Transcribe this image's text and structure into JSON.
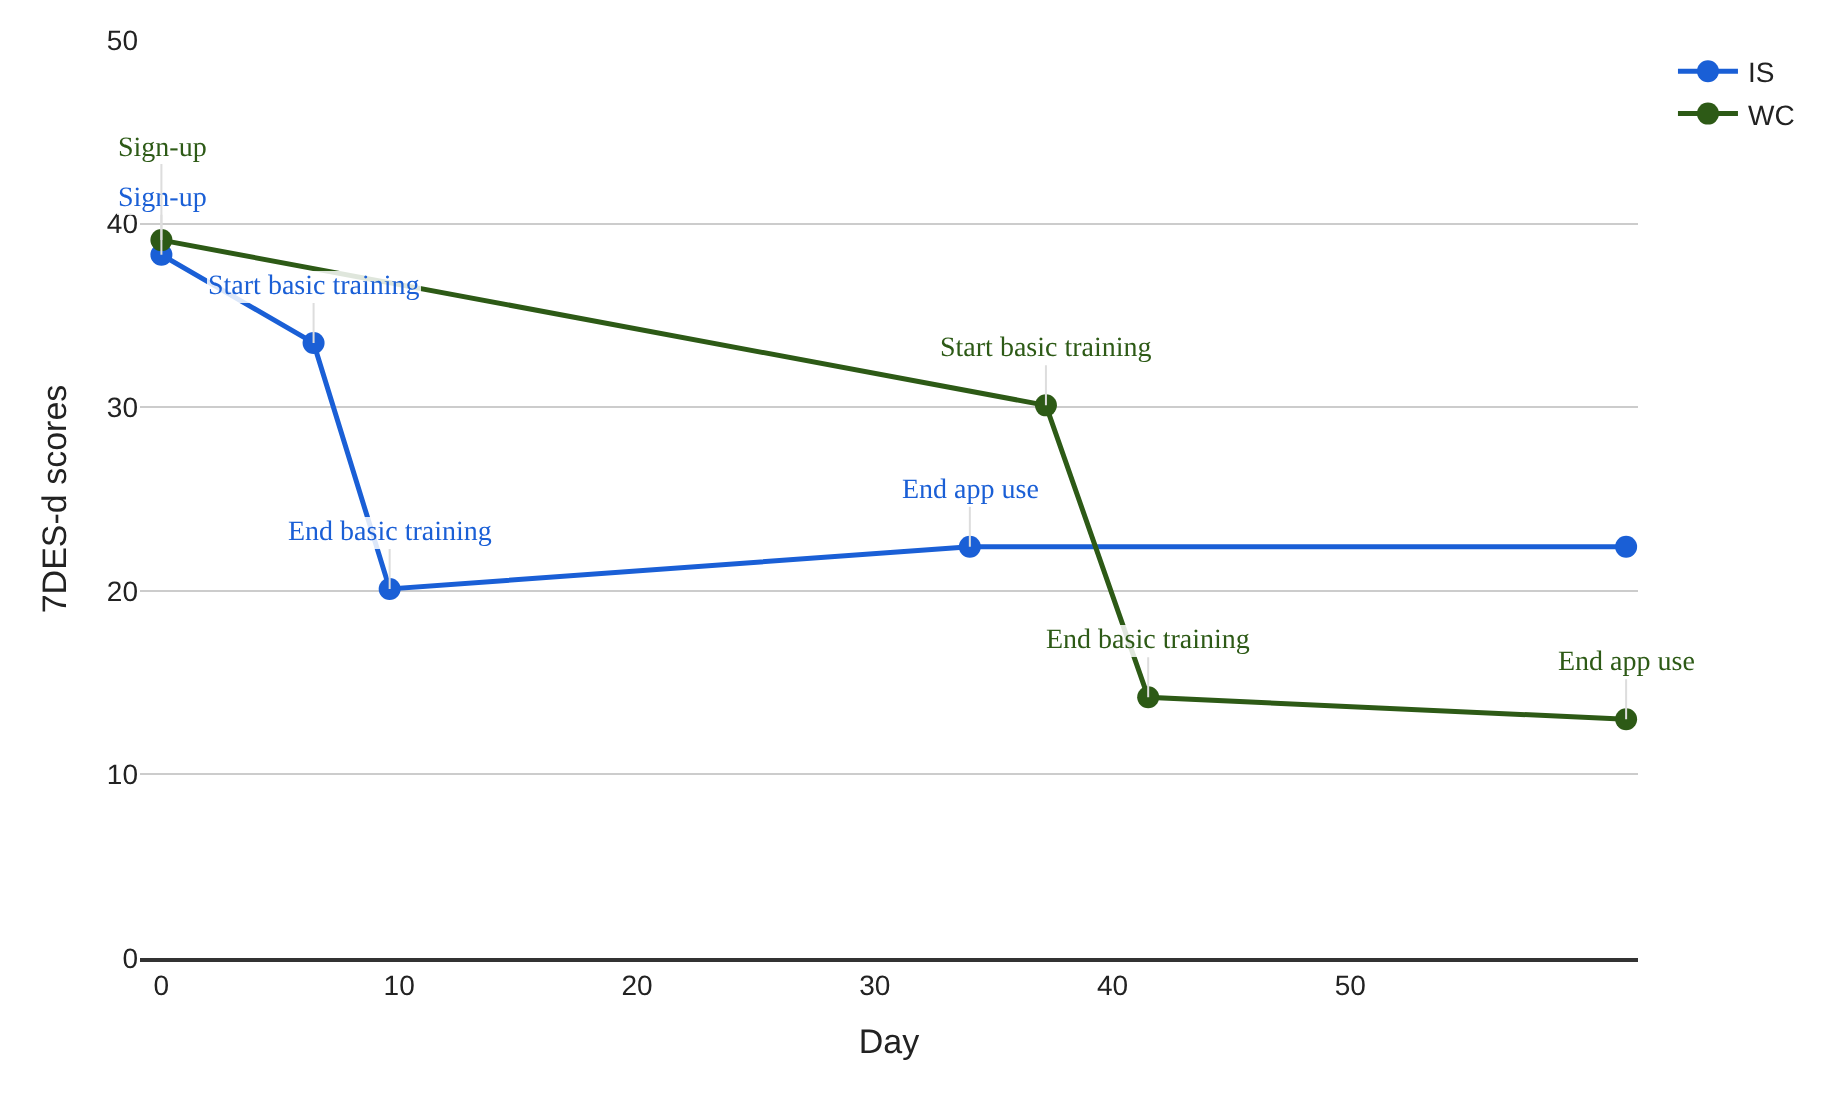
{
  "chart_data": {
    "type": "line",
    "xlabel": "Day",
    "ylabel": "7DES-d scores",
    "xlim": [
      -0.9,
      62.1
    ],
    "xticks": [
      0,
      10,
      20,
      30,
      40,
      50
    ],
    "ylim": [
      0,
      50
    ],
    "yticks": [
      0,
      10,
      20,
      30,
      40,
      50
    ],
    "grid": "y",
    "legend": "top right",
    "marker": "circle",
    "line_style": "solid",
    "series": [
      {
        "name": "IS",
        "color": "#1a5fd6",
        "x": [
          0,
          6.4,
          9.6,
          34,
          61.6
        ],
        "values": [
          38.3,
          33.5,
          20.1,
          22.4,
          22.4
        ]
      },
      {
        "name": "WC",
        "color": "#2d5a16",
        "x": [
          0,
          37.2,
          41.5,
          61.6
        ],
        "values": [
          39.1,
          30.1,
          14.2,
          13.0
        ]
      }
    ],
    "annotations": [
      {
        "text": "Sign-up",
        "x": 0,
        "y": 38.3
      },
      {
        "text": "Start basic training",
        "x": 6.4,
        "y": 33.5
      },
      {
        "text": "End basic training",
        "x": 9.6,
        "y": 20.1
      },
      {
        "text": "End app use",
        "x": 34,
        "y": 22.4
      },
      {
        "text": "Sign-up",
        "x": 0,
        "y": 39.1
      },
      {
        "text": "Start basic training",
        "x": 37.2,
        "y": 30.1
      },
      {
        "text": "End basic training",
        "x": 41.5,
        "y": 14.2
      },
      {
        "text": "End app use",
        "x": 61.6,
        "y": 13.0
      }
    ]
  }
}
